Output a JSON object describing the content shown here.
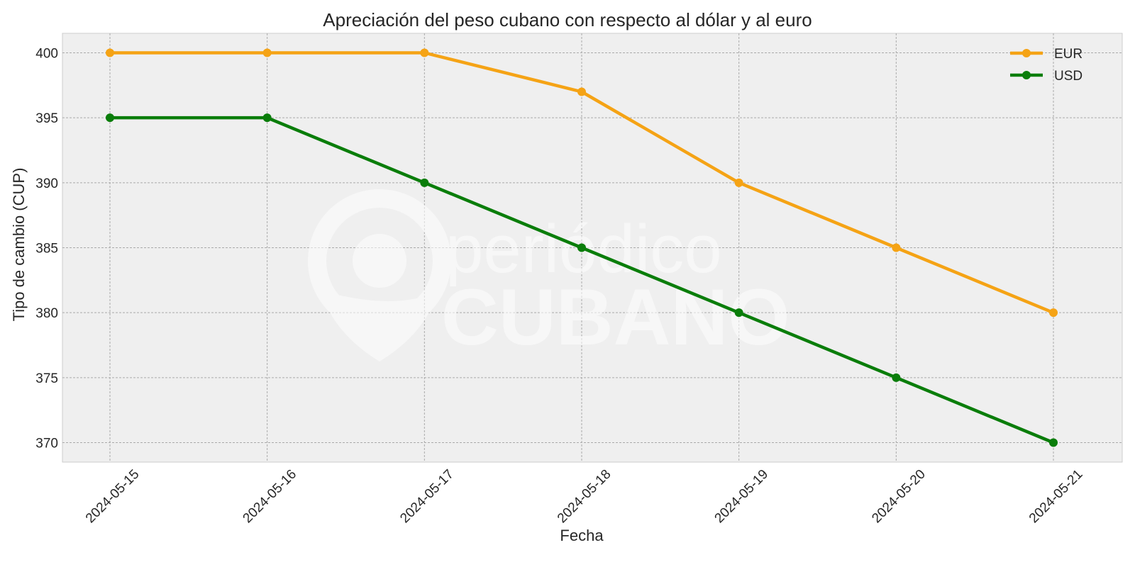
{
  "chart_data": {
    "type": "line",
    "title": "Apreciación del peso cubano con respecto al dólar y al euro",
    "xlabel": "Fecha",
    "ylabel": "Tipo de cambio (CUP)",
    "categories": [
      "2024-05-15",
      "2024-05-16",
      "2024-05-17",
      "2024-05-18",
      "2024-05-19",
      "2024-05-20",
      "2024-05-21"
    ],
    "series": [
      {
        "name": "EUR",
        "color": "#f5a315",
        "values": [
          400,
          400,
          400,
          397,
          390,
          385,
          380
        ]
      },
      {
        "name": "USD",
        "color": "#0a7d0a",
        "values": [
          395,
          395,
          390,
          385,
          380,
          375,
          370
        ]
      }
    ],
    "ylim": [
      368.5,
      401.5
    ],
    "yticks": [
      370,
      375,
      380,
      385,
      390,
      395,
      400
    ],
    "grid": true,
    "legend_position": "top-right",
    "watermark": "periódico CUBANO"
  }
}
